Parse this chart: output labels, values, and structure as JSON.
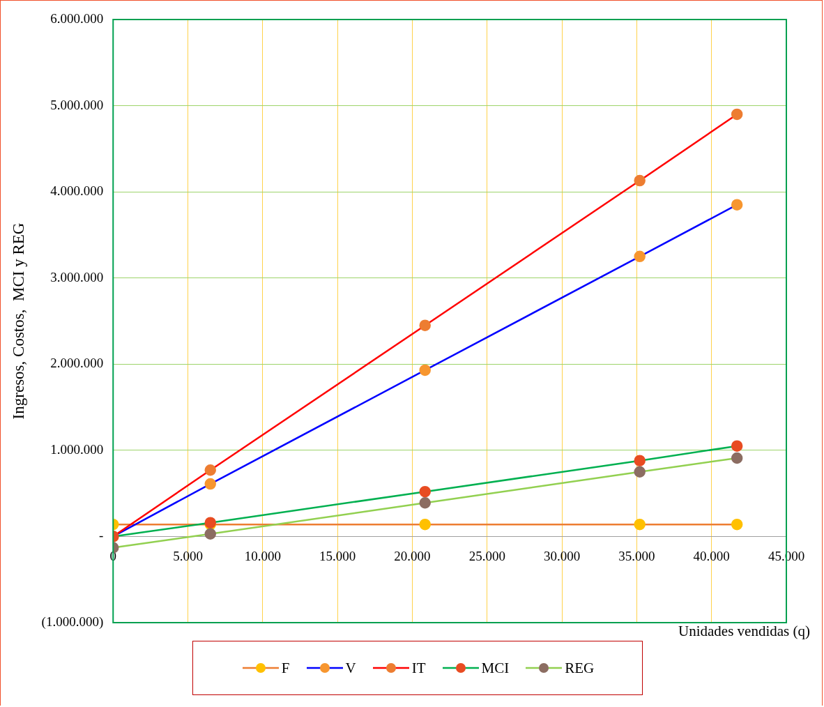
{
  "chart_data": {
    "type": "line",
    "xlabel": "Unidades vendidas (q)",
    "ylabel": "Ingresos, Costos,  MCI y REG",
    "x": [
      0,
      6500,
      20850,
      35200,
      41700
    ],
    "series": [
      {
        "name": "F",
        "color": "#ed7d31",
        "colors": [
          "#ffc000",
          "#ffc000",
          "#ffc000",
          "#ffc000",
          "#ffc000"
        ],
        "values": [
          140000,
          140000,
          140000,
          140000,
          140000
        ]
      },
      {
        "name": "V",
        "color": "#0000ff",
        "colors": [
          "#f7962f",
          "#f7962f",
          "#f7962f",
          "#f7962f",
          "#f7962f"
        ],
        "values": [
          0,
          610000,
          1930000,
          3250000,
          3850000
        ]
      },
      {
        "name": "IT",
        "color": "#ff0000",
        "colors": [
          "#ed7d31",
          "#ed7d31",
          "#ed7d31",
          "#ed7d31",
          "#ed7d31"
        ],
        "values": [
          0,
          770000,
          2450000,
          4130000,
          4900000
        ]
      },
      {
        "name": "MCI",
        "color": "#00b050",
        "colors": [
          "#e84c22",
          "#e84c22",
          "#e84c22",
          "#e84c22",
          "#e84c22"
        ],
        "values": [
          0,
          160000,
          520000,
          880000,
          1050000
        ]
      },
      {
        "name": "REG",
        "color": "#92d050",
        "colors": [
          "#8c6d62",
          "#8c6d62",
          "#8c6d62",
          "#8c6d62",
          "#8c6d62"
        ],
        "values": [
          -130000,
          30000,
          390000,
          750000,
          910000
        ]
      }
    ],
    "xlim": [
      0,
      45000
    ],
    "xticks": [
      0,
      {
        "value": 5000,
        "label": "5.000"
      },
      {
        "value": 10000,
        "label": "10.000"
      },
      {
        "value": 15000,
        "label": "15.000"
      },
      {
        "value": 20000,
        "label": "20.000"
      },
      {
        "value": 25000,
        "label": "25.000"
      },
      {
        "value": 30000,
        "label": "30.000"
      },
      {
        "value": 35000,
        "label": "35.000"
      },
      {
        "value": 40000,
        "label": "40.000"
      },
      {
        "value": 45000,
        "label": "45.000"
      }
    ],
    "ylim": [
      -1000000,
      6000000
    ],
    "yticks": [
      {
        "value": -1000000,
        "label": "(1.000.000)"
      },
      {
        "value": 0,
        "label": "-"
      },
      {
        "value": 1000000,
        "label": "1.000.000"
      },
      {
        "value": 2000000,
        "label": "2.000.000"
      },
      {
        "value": 3000000,
        "label": "3.000.000"
      },
      {
        "value": 4000000,
        "label": "4.000.000"
      },
      {
        "value": 5000000,
        "label": "5.000.000"
      },
      {
        "value": 6000000,
        "label": "6.000.000"
      }
    ],
    "grid": true,
    "legend": "bottom",
    "marker": "circle",
    "line_style": "solid"
  }
}
